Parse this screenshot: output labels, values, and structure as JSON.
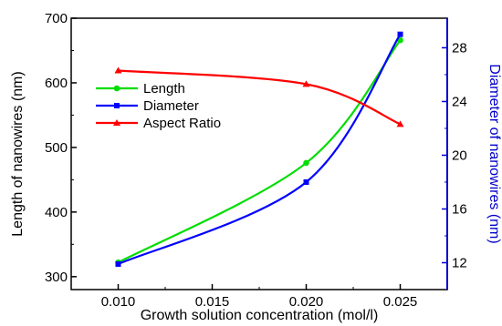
{
  "chart_data": {
    "type": "line",
    "x": [
      0.01,
      0.02,
      0.025
    ],
    "series": [
      {
        "name": "Length",
        "axis": "left",
        "values": [
          322,
          476,
          666
        ],
        "color": "#00dd00",
        "marker": "circle"
      },
      {
        "name": "Diameter",
        "axis": "right",
        "values": [
          11.9,
          18.0,
          29.0
        ],
        "color": "#0000ff",
        "marker": "square"
      },
      {
        "name": "Aspect Ratio",
        "axis": "left",
        "values": [
          619,
          598,
          536
        ],
        "color": "#ff0000",
        "marker": "triangle"
      }
    ],
    "xlabel": "Growth solution concentration (mol/l)",
    "ylabel_left": "Length of nanowires (nm)",
    "ylabel_right": "Diameter of nanowires (nm)",
    "xlim": [
      0.0075,
      0.0275
    ],
    "ylim_left": [
      280,
      700
    ],
    "ylim_right": [
      10,
      30.2
    ],
    "x_ticks": [
      0.01,
      0.015,
      0.02,
      0.025
    ],
    "x_tick_labels": [
      "0.010",
      "0.015",
      "0.020",
      "0.025"
    ],
    "y_left_ticks": [
      300,
      400,
      500,
      600,
      700
    ],
    "y_left_tick_labels": [
      "300",
      "400",
      "500",
      "600",
      "700"
    ],
    "y_right_ticks": [
      12,
      16,
      20,
      24,
      28
    ],
    "y_right_tick_labels": [
      "12",
      "16",
      "20",
      "24",
      "28"
    ],
    "right_axis_color": "#0000cc",
    "grid": false,
    "legend_position": "upper-left"
  }
}
